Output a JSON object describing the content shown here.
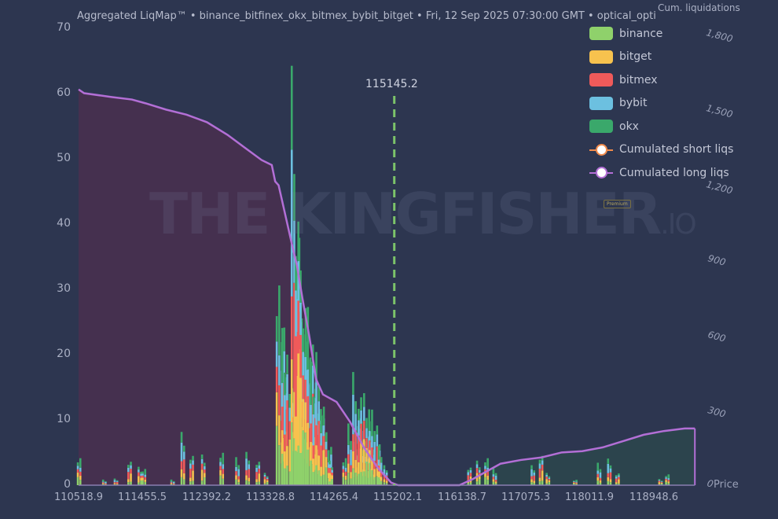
{
  "header": {
    "subtitle": "Aggregated LiqMap™  •  binance_bitfinex_okx_bitmex_bybit_bitget  •  Fri, 12 Sep 2025 07:30:00 GMT  •  optical_opti",
    "right_axis_title": "Cum. liquidations",
    "watermark": "THE KINGFISHER",
    "watermark_suffix": ".IO",
    "badge": "Premium"
  },
  "legend": [
    {
      "label": "binance",
      "color": "#8fd16b",
      "type": "bar"
    },
    {
      "label": "bitget",
      "color": "#f7c24e",
      "type": "bar"
    },
    {
      "label": "bitmex",
      "color": "#ef5a5a",
      "type": "bar"
    },
    {
      "label": "bybit",
      "color": "#6cc0e0",
      "type": "bar"
    },
    {
      "label": "okx",
      "color": "#3aa86b",
      "type": "bar"
    },
    {
      "label": "Cumulated short liqs",
      "color": "#f08a4b",
      "type": "line"
    },
    {
      "label": "Cumulated long liqs",
      "color": "#b36fd6",
      "type": "line"
    }
  ],
  "current_price": {
    "value": "115145.2",
    "color": "#7cc46a"
  },
  "axes": {
    "y_left": [
      "0",
      "10",
      "20",
      "30",
      "40",
      "50",
      "60",
      "70"
    ],
    "y_right": [
      "0",
      "300",
      "600",
      "900",
      "1,200",
      "1,500",
      "1,800"
    ],
    "x": [
      "110518.9",
      "111455.5",
      "112392.2",
      "113328.8",
      "114265.4",
      "115202.1",
      "116138.7",
      "117075.3",
      "118011.9",
      "118948.6"
    ],
    "x_label": "Price"
  },
  "chart_data": {
    "type": "bar",
    "title": "Aggregated LiqMap™",
    "subtitle": "binance_bitfinex_okx_bitmex_bybit_bitget • Fri, 12 Sep 2025 07:30:00 GMT • optical_opti",
    "xlabel": "Price",
    "ylabel": "",
    "y2label": "Cum. liquidations",
    "ylim": [
      0,
      70
    ],
    "y2lim": [
      0,
      1800
    ],
    "xlim": [
      110518.9,
      119550
    ],
    "legend_position": "top-right",
    "grid": false,
    "current_price": 115145.2,
    "x_ticks": [
      110518.9,
      111455.5,
      112392.2,
      113328.8,
      114265.4,
      115202.1,
      116138.7,
      117075.3,
      118011.9,
      118948.6
    ],
    "stacked_bar_clusters": [
      {
        "price": 110530,
        "total": 5
      },
      {
        "price": 110900,
        "total": 1
      },
      {
        "price": 111070,
        "total": 1
      },
      {
        "price": 111270,
        "total": 4
      },
      {
        "price": 111420,
        "total": 3
      },
      {
        "price": 111480,
        "total": 3
      },
      {
        "price": 111900,
        "total": 1
      },
      {
        "price": 112050,
        "total": 8
      },
      {
        "price": 112180,
        "total": 5
      },
      {
        "price": 112350,
        "total": 5
      },
      {
        "price": 112620,
        "total": 6
      },
      {
        "price": 112850,
        "total": 5
      },
      {
        "price": 113000,
        "total": 5
      },
      {
        "price": 113150,
        "total": 4
      },
      {
        "price": 113270,
        "total": 2
      },
      {
        "price": 113500,
        "total": 37
      },
      {
        "price": 113580,
        "total": 28
      },
      {
        "price": 113720,
        "total": 63
      },
      {
        "price": 113780,
        "total": 45
      },
      {
        "price": 113850,
        "total": 35
      },
      {
        "price": 113920,
        "total": 33
      },
      {
        "price": 114000,
        "total": 22
      },
      {
        "price": 114080,
        "total": 20
      },
      {
        "price": 114150,
        "total": 12
      },
      {
        "price": 114220,
        "total": 4
      },
      {
        "price": 114420,
        "total": 5
      },
      {
        "price": 114550,
        "total": 11
      },
      {
        "price": 114620,
        "total": 17
      },
      {
        "price": 114700,
        "total": 15
      },
      {
        "price": 114780,
        "total": 15
      },
      {
        "price": 114860,
        "total": 14
      },
      {
        "price": 114940,
        "total": 7
      },
      {
        "price": 115020,
        "total": 3
      },
      {
        "price": 116250,
        "total": 3
      },
      {
        "price": 116380,
        "total": 4
      },
      {
        "price": 116500,
        "total": 5
      },
      {
        "price": 116620,
        "total": 3
      },
      {
        "price": 117180,
        "total": 3
      },
      {
        "price": 117300,
        "total": 5
      },
      {
        "price": 117400,
        "total": 2
      },
      {
        "price": 117800,
        "total": 1
      },
      {
        "price": 118150,
        "total": 4
      },
      {
        "price": 118300,
        "total": 4
      },
      {
        "price": 118420,
        "total": 2
      },
      {
        "price": 119050,
        "total": 1
      },
      {
        "price": 119150,
        "total": 2
      }
    ],
    "series": [
      {
        "name": "Cumulated long liqs",
        "axis": "right",
        "x": [
          110518.9,
          110600,
          111000,
          111300,
          111500,
          111800,
          112100,
          112400,
          112700,
          112950,
          113200,
          113350,
          113400,
          113450,
          113550,
          113650,
          113720,
          113800,
          113900,
          114000,
          114100,
          114300,
          114500,
          114700,
          114900,
          115100,
          115202
        ],
        "values": [
          1570,
          1555,
          1540,
          1530,
          1515,
          1490,
          1470,
          1440,
          1390,
          1340,
          1290,
          1270,
          1205,
          1190,
          1070,
          950,
          870,
          740,
          590,
          420,
          360,
          330,
          250,
          150,
          70,
          10,
          0
        ]
      },
      {
        "name": "Cumulated short liqs",
        "axis": "right",
        "x": [
          115202,
          116100,
          116300,
          116500,
          116700,
          117000,
          117300,
          117600,
          117900,
          118200,
          118500,
          118800,
          119100,
          119400,
          119550
        ],
        "values": [
          0,
          0,
          25,
          55,
          85,
          100,
          110,
          130,
          135,
          150,
          175,
          200,
          215,
          225,
          225
        ]
      }
    ]
  }
}
